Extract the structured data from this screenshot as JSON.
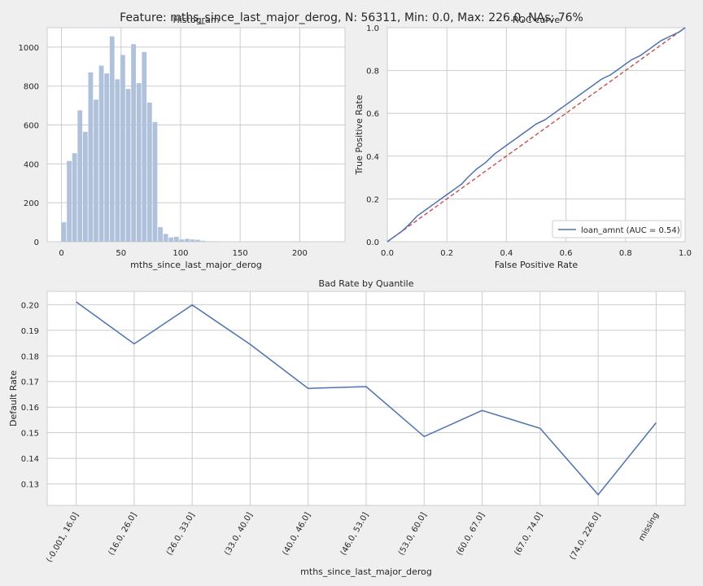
{
  "suptitle": "Feature: mths_since_last_major_derog, N: 56311, Min: 0.0, Max: 226.0, NAs: 76%",
  "colors": {
    "background": "#efefef",
    "plot_bg": "#ffffff",
    "grid": "#cccccc",
    "hist_bar": "#b0c1dc",
    "line": "#4c72b0",
    "diagonal": "#c44e52"
  },
  "chart_data": [
    {
      "type": "bar",
      "title": "Histogram",
      "xlabel": "mths_since_last_major_derog",
      "ylabel": "",
      "xlim": [
        -12,
        238
      ],
      "ylim": [
        0,
        1100
      ],
      "xticks": [
        0,
        50,
        100,
        150,
        200
      ],
      "yticks": [
        0,
        200,
        400,
        600,
        800,
        1000
      ],
      "bin_width": 4.5,
      "bin_starts": [
        0,
        4.5,
        9,
        13.5,
        18,
        22.5,
        27,
        31.5,
        36,
        40.5,
        45,
        49.5,
        54,
        58.5,
        63,
        67.5,
        72,
        76.5,
        81,
        85.5,
        90,
        94.5,
        99,
        103.5,
        108,
        112.5,
        117,
        121.5,
        126,
        130.5
      ],
      "values": [
        100,
        415,
        455,
        675,
        565,
        870,
        730,
        905,
        865,
        1055,
        835,
        960,
        785,
        1015,
        815,
        975,
        715,
        615,
        75,
        40,
        22,
        25,
        12,
        15,
        12,
        10,
        5,
        2,
        1,
        1
      ],
      "grid": true
    },
    {
      "type": "line",
      "title": "ROC curve",
      "xlabel": "False Positive Rate",
      "ylabel": "True Positive Rate",
      "xlim": [
        0,
        1
      ],
      "ylim": [
        0,
        1
      ],
      "xticks": [
        0.0,
        0.2,
        0.4,
        0.6,
        0.8,
        1.0
      ],
      "yticks": [
        0.0,
        0.2,
        0.4,
        0.6,
        0.8,
        1.0
      ],
      "legend_position": "bottom-right",
      "series": [
        {
          "name": "loan_amnt (AUC = 0.54)",
          "x": [
            0,
            0.02,
            0.05,
            0.08,
            0.1,
            0.12,
            0.15,
            0.18,
            0.2,
            0.23,
            0.25,
            0.27,
            0.3,
            0.33,
            0.36,
            0.4,
            0.43,
            0.45,
            0.48,
            0.5,
            0.53,
            0.55,
            0.58,
            0.6,
            0.63,
            0.65,
            0.68,
            0.7,
            0.72,
            0.75,
            0.78,
            0.8,
            0.82,
            0.85,
            0.88,
            0.9,
            0.92,
            0.95,
            0.98,
            1.0
          ],
          "y": [
            0,
            0.02,
            0.05,
            0.09,
            0.12,
            0.14,
            0.17,
            0.2,
            0.22,
            0.25,
            0.27,
            0.3,
            0.34,
            0.37,
            0.41,
            0.45,
            0.48,
            0.5,
            0.53,
            0.55,
            0.57,
            0.59,
            0.62,
            0.64,
            0.67,
            0.69,
            0.72,
            0.74,
            0.76,
            0.78,
            0.81,
            0.83,
            0.85,
            0.87,
            0.9,
            0.92,
            0.94,
            0.96,
            0.98,
            1.0
          ]
        }
      ],
      "reference_line": {
        "x": [
          0,
          1
        ],
        "y": [
          0,
          1
        ],
        "style": "dashed"
      },
      "grid": true
    },
    {
      "type": "line",
      "title": "Bad Rate by Quantile",
      "xlabel": "mths_since_last_major_derog",
      "ylabel": "Default Rate",
      "categories": [
        "(-0.001, 16.0]",
        "(16.0, 26.0]",
        "(26.0, 33.0]",
        "(33.0, 40.0]",
        "(40.0, 46.0]",
        "(46.0, 53.0]",
        "(53.0, 60.0]",
        "(60.0, 67.0]",
        "(67.0, 74.0]",
        "(74.0, 226.0]",
        "missing"
      ],
      "values": [
        0.2011,
        0.1847,
        0.1999,
        0.1845,
        0.1673,
        0.168,
        0.1485,
        0.1587,
        0.1517,
        0.1258,
        0.1539
      ],
      "ylim": [
        0.1216,
        0.2052
      ],
      "yticks": [
        0.13,
        0.14,
        0.15,
        0.16,
        0.17,
        0.18,
        0.19,
        0.2
      ],
      "grid": true
    }
  ]
}
